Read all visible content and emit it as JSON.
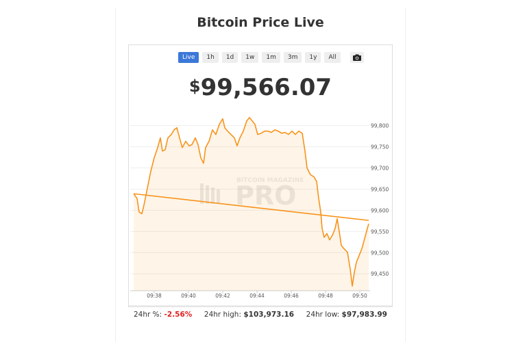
{
  "title": "Bitcoin Price Live",
  "buttons": [
    "Live",
    "1h",
    "1d",
    "1w",
    "1m",
    "3m",
    "1y",
    "All"
  ],
  "active_button": 0,
  "price": {
    "currency": "$",
    "amount": "99,566.07"
  },
  "watermark": {
    "top": "BITCOIN MAGAZINE",
    "main": "PRO"
  },
  "chart_data": {
    "type": "line",
    "color": "#f7931a",
    "x": [
      36.8,
      37,
      37.12,
      37.28,
      37.4,
      37.52,
      37.64,
      37.8,
      38,
      38.2,
      38.36,
      38.48,
      38.64,
      38.8,
      39,
      39.16,
      39.32,
      39.48,
      39.64,
      39.84,
      40.04,
      40.2,
      40.4,
      40.56,
      40.72,
      40.88,
      41,
      41.2,
      41.4,
      41.6,
      41.8,
      42,
      42.12,
      42.28,
      42.48,
      42.68,
      42.84,
      43,
      43.2,
      43.4,
      43.56,
      43.72,
      43.88,
      44.04,
      44.24,
      44.44,
      44.64,
      44.84,
      45.04,
      45.24,
      45.44,
      45.64,
      45.84,
      46.04,
      46.24,
      46.44,
      46.64,
      46.8,
      46.92,
      47.12,
      47.32,
      47.48,
      47.6,
      47.72,
      47.8,
      47.92,
      48.08,
      48.24,
      48.4,
      48.56,
      48.68,
      48.8,
      48.92,
      49.08,
      49.28,
      49.44,
      49.56,
      49.68,
      49.8,
      49.96,
      50.12,
      50.28,
      50.44,
      50.52
    ],
    "values": [
      99639,
      99628,
      99596,
      99592,
      99612,
      99636,
      99660,
      99692,
      99724,
      99748,
      99771,
      99740,
      99743,
      99771,
      99779,
      99790,
      99795,
      99771,
      99748,
      99763,
      99752,
      99755,
      99771,
      99755,
      99724,
      99711,
      99748,
      99763,
      99790,
      99779,
      99803,
      99816,
      99795,
      99787,
      99779,
      99771,
      99752,
      99771,
      99787,
      99811,
      99819,
      99811,
      99803,
      99779,
      99782,
      99787,
      99787,
      99784,
      99790,
      99787,
      99782,
      99784,
      99779,
      99787,
      99779,
      99787,
      99782,
      99740,
      99700,
      99684,
      99679,
      99668,
      99628,
      99596,
      99557,
      99536,
      99545,
      99530,
      99541,
      99557,
      99580,
      99550,
      99517,
      99509,
      99501,
      99461,
      99421,
      99453,
      99477,
      99493,
      99509,
      99533,
      99557,
      99568
    ],
    "trendline": {
      "x": [
        36.8,
        50.52
      ],
      "values": [
        99639,
        99576
      ]
    },
    "xlim": [
      36.6,
      50.6
    ],
    "xticks": [
      {
        "value": 38,
        "label": "09:38"
      },
      {
        "value": 40,
        "label": "09:40"
      },
      {
        "value": 42,
        "label": "09:42"
      },
      {
        "value": 44,
        "label": "09:44"
      },
      {
        "value": 46,
        "label": "09:46"
      },
      {
        "value": 48,
        "label": "09:48"
      },
      {
        "value": 50,
        "label": "09:50"
      }
    ],
    "ylim": [
      99410,
      99822
    ],
    "yticks": [
      {
        "value": 99450,
        "label": "99,450"
      },
      {
        "value": 99500,
        "label": "99,500"
      },
      {
        "value": 99550,
        "label": "99,550"
      },
      {
        "value": 99600,
        "label": "99,600"
      },
      {
        "value": 99650,
        "label": "99,650"
      },
      {
        "value": 99700,
        "label": "99,700"
      },
      {
        "value": 99750,
        "label": "99,750"
      },
      {
        "value": 99800,
        "label": "99,800"
      }
    ],
    "grid": true
  },
  "stats": [
    {
      "label": "24hr %:",
      "value": "-2.56%"
    },
    {
      "label": "24hr high:",
      "value": "$103,973.16"
    },
    {
      "label": "24hr low:",
      "value": "$97,983.99"
    }
  ]
}
